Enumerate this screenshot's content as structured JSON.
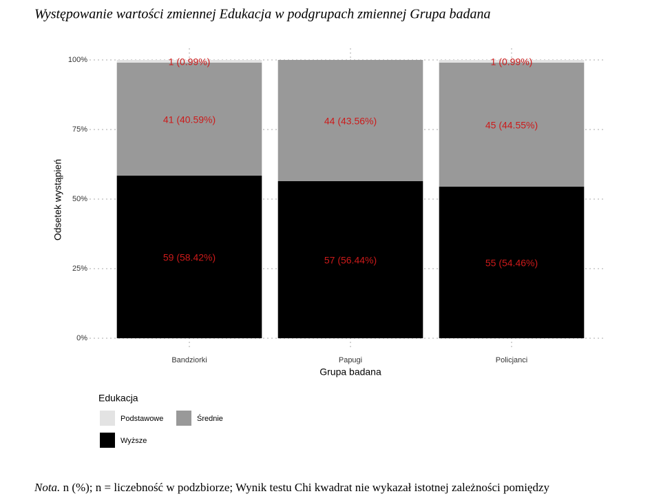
{
  "chart_data": {
    "type": "stacked-bar",
    "title": "Występowanie wartości zmiennej Edukacja w podgrupach zmiennej Grupa badana",
    "categories": [
      "Bandziorki",
      "Papugi",
      "Policjanci"
    ],
    "series": [
      {
        "name": "Podstawowe",
        "color": "#e3e3e3",
        "values": [
          0.99,
          0,
          0.99
        ],
        "value_labels": [
          "1 (0.99%)",
          null,
          "1 (0.99%)"
        ]
      },
      {
        "name": "Średnie",
        "color": "#999999",
        "values": [
          40.59,
          43.56,
          44.55
        ],
        "value_labels": [
          "41 (40.59%)",
          "44 (43.56%)",
          "45 (44.55%)"
        ]
      },
      {
        "name": "Wyższe",
        "color": "#000000",
        "values": [
          58.42,
          56.44,
          54.46
        ],
        "value_labels": [
          "59 (58.42%)",
          "57 (56.44%)",
          "55 (54.46%)"
        ]
      }
    ],
    "label_color": "#cc1a1a",
    "stack_order": "bottom-up-reversed",
    "ylim": [
      0,
      100
    ],
    "yticks": [
      {
        "value": 0,
        "label": "0%"
      },
      {
        "value": 25,
        "label": "25%"
      },
      {
        "value": 50,
        "label": "50%"
      },
      {
        "value": 75,
        "label": "75%"
      },
      {
        "value": 100,
        "label": "100%"
      }
    ],
    "ylabel": "Odsetek wystąpień",
    "xlabel": "Grupa badana",
    "legend_title": "Edukacja",
    "grid": true,
    "note": {
      "lead": "Nota.",
      "text": "n (%); n = liczebność w podzbiorze; Wynik testu Chi kwadrat nie wykazał istotnej zależności pomiędzy"
    }
  }
}
